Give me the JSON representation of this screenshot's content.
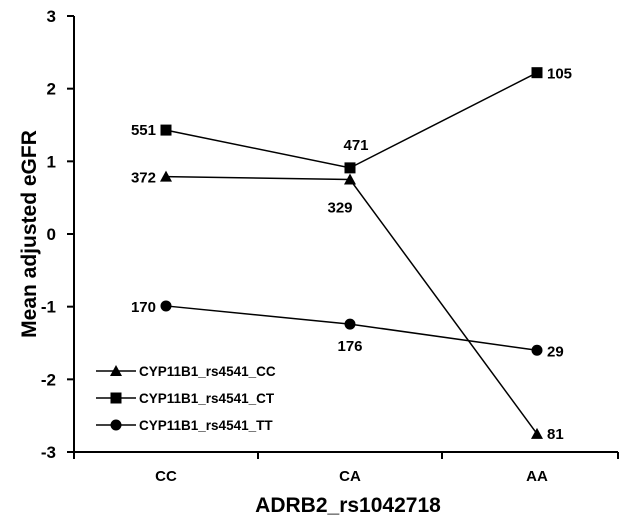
{
  "chart_data": {
    "type": "line",
    "xlabel": "ADRB2_rs1042718",
    "ylabel": "Mean adjusted eGFR",
    "categories": [
      "CC",
      "CA",
      "AA"
    ],
    "ylim": [
      -3,
      3
    ],
    "yticks": [
      3,
      2,
      1,
      0,
      -1,
      -2,
      -3
    ],
    "grid": false,
    "legend_position": "bottom-left",
    "series": [
      {
        "name": "CYP11B1_rs4541_CC",
        "marker": "triangle",
        "values": [
          0.79,
          0.75,
          -2.75
        ],
        "labels": [
          "372",
          "329",
          "81"
        ]
      },
      {
        "name": "CYP11B1_rs4541_CT",
        "marker": "square",
        "values": [
          1.43,
          0.91,
          2.22
        ],
        "labels": [
          "551",
          "471",
          "105"
        ]
      },
      {
        "name": "CYP11B1_rs4541_TT",
        "marker": "circle",
        "values": [
          -0.99,
          -1.24,
          -1.6
        ],
        "labels": [
          "170",
          "176",
          "29"
        ]
      }
    ]
  }
}
